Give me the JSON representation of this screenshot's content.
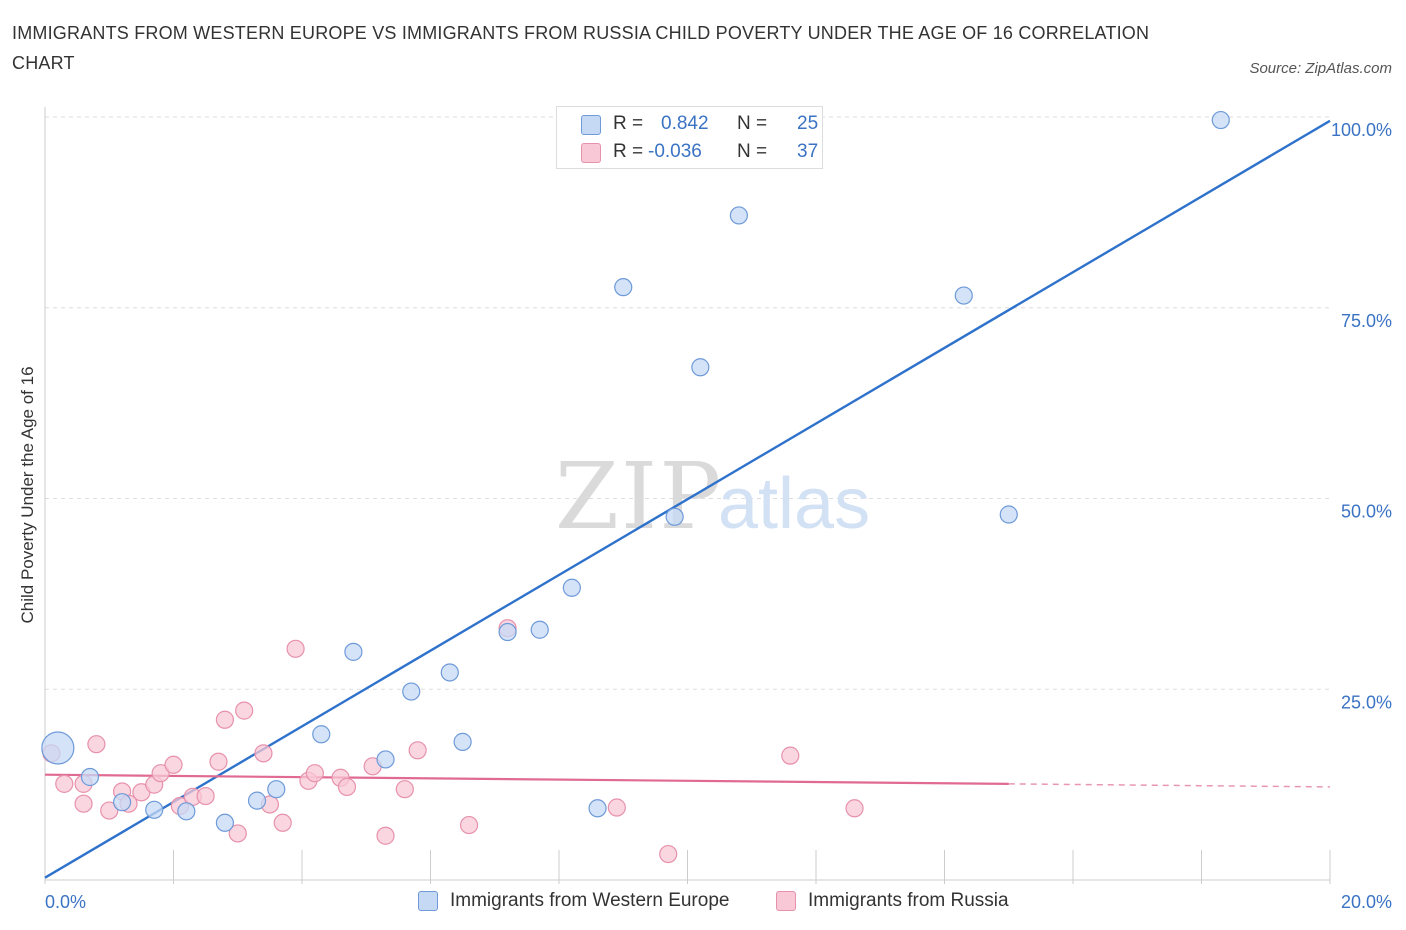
{
  "title": "IMMIGRANTS FROM WESTERN EUROPE VS IMMIGRANTS FROM RUSSIA CHILD POVERTY UNDER THE AGE OF 16 CORRELATION CHART",
  "source": "Source: ZipAtlas.com",
  "watermark": {
    "zip": "ZIP",
    "atlas": "atlas"
  },
  "colors": {
    "blue_fill": "#c5d9f5",
    "blue_stroke": "#6e9ad8",
    "blue_line": "#2f72cc",
    "pink_fill": "#f8c8d6",
    "pink_stroke": "#e791ac",
    "pink_line": "#e06a92",
    "grid": "#dddddd",
    "tick_label": "#3b73c4"
  },
  "legend": {
    "rows": [
      {
        "r_label": "R =",
        "r_value": "0.842",
        "n_label": "N =",
        "n_value": "25"
      },
      {
        "r_label": "R =",
        "r_value": "-0.036",
        "n_label": "N =",
        "n_value": "37"
      }
    ]
  },
  "chart_data": {
    "type": "scatter",
    "title": "IMMIGRANTS FROM WESTERN EUROPE VS IMMIGRANTS FROM RUSSIA CHILD POVERTY UNDER THE AGE OF 16 CORRELATION CHART",
    "xlabel": "",
    "ylabel": "Child Poverty Under the Age of 16",
    "xlim": [
      0,
      20
    ],
    "ylim": [
      0,
      100
    ],
    "x_tick_labels": [
      "0.0%",
      "20.0%"
    ],
    "y_ticks": [
      25,
      50,
      75,
      100
    ],
    "y_tick_labels": [
      "25.0%",
      "50.0%",
      "75.0%",
      "100.0%"
    ],
    "grid": true,
    "series": [
      {
        "name": "Immigrants from Western Europe",
        "color": "blue",
        "r": 0.842,
        "n": 25,
        "trend": {
          "x0": 0,
          "y0": 0.3,
          "x1": 20,
          "y1": 99.5,
          "dashed_from_x": null
        },
        "points": [
          {
            "x": 0.2,
            "y": 17.3,
            "big": true
          },
          {
            "x": 0.7,
            "y": 13.5
          },
          {
            "x": 1.2,
            "y": 10.2
          },
          {
            "x": 1.7,
            "y": 9.2
          },
          {
            "x": 2.2,
            "y": 9.0
          },
          {
            "x": 2.8,
            "y": 7.5
          },
          {
            "x": 3.3,
            "y": 10.4
          },
          {
            "x": 3.6,
            "y": 11.9
          },
          {
            "x": 4.3,
            "y": 19.1
          },
          {
            "x": 4.8,
            "y": 29.9
          },
          {
            "x": 5.3,
            "y": 15.8
          },
          {
            "x": 5.7,
            "y": 24.7
          },
          {
            "x": 6.3,
            "y": 27.2
          },
          {
            "x": 6.5,
            "y": 18.1
          },
          {
            "x": 7.2,
            "y": 32.5
          },
          {
            "x": 7.7,
            "y": 32.8
          },
          {
            "x": 8.2,
            "y": 38.3
          },
          {
            "x": 8.6,
            "y": 9.4
          },
          {
            "x": 9.0,
            "y": 77.7
          },
          {
            "x": 9.8,
            "y": 47.6
          },
          {
            "x": 10.2,
            "y": 67.2
          },
          {
            "x": 10.8,
            "y": 87.1
          },
          {
            "x": 14.3,
            "y": 76.6
          },
          {
            "x": 15.0,
            "y": 47.9
          },
          {
            "x": 18.3,
            "y": 99.6
          }
        ]
      },
      {
        "name": "Immigrants from Russia",
        "color": "pink",
        "r": -0.036,
        "n": 37,
        "trend": {
          "x0": 0,
          "y0": 13.8,
          "x1": 20,
          "y1": 12.2,
          "dashed_from_x": 15.0
        },
        "points": [
          {
            "x": 0.1,
            "y": 16.6
          },
          {
            "x": 0.3,
            "y": 12.6
          },
          {
            "x": 0.6,
            "y": 12.6
          },
          {
            "x": 0.6,
            "y": 10.0
          },
          {
            "x": 0.8,
            "y": 17.8
          },
          {
            "x": 1.0,
            "y": 9.1
          },
          {
            "x": 1.2,
            "y": 11.6
          },
          {
            "x": 1.3,
            "y": 10.0
          },
          {
            "x": 1.5,
            "y": 11.5
          },
          {
            "x": 1.7,
            "y": 12.5
          },
          {
            "x": 1.8,
            "y": 14.0
          },
          {
            "x": 2.0,
            "y": 15.1
          },
          {
            "x": 2.1,
            "y": 9.7
          },
          {
            "x": 2.3,
            "y": 10.9
          },
          {
            "x": 2.5,
            "y": 11.0
          },
          {
            "x": 2.7,
            "y": 15.5
          },
          {
            "x": 2.8,
            "y": 21.0
          },
          {
            "x": 3.0,
            "y": 6.1
          },
          {
            "x": 3.1,
            "y": 22.2
          },
          {
            "x": 3.4,
            "y": 16.6
          },
          {
            "x": 3.5,
            "y": 9.9
          },
          {
            "x": 3.7,
            "y": 7.5
          },
          {
            "x": 3.9,
            "y": 30.3
          },
          {
            "x": 4.1,
            "y": 13.0
          },
          {
            "x": 4.2,
            "y": 14.0
          },
          {
            "x": 4.6,
            "y": 13.4
          },
          {
            "x": 4.7,
            "y": 12.2
          },
          {
            "x": 5.1,
            "y": 14.9
          },
          {
            "x": 5.3,
            "y": 5.8
          },
          {
            "x": 5.6,
            "y": 11.9
          },
          {
            "x": 5.8,
            "y": 17.0
          },
          {
            "x": 6.6,
            "y": 7.2
          },
          {
            "x": 7.2,
            "y": 33.0
          },
          {
            "x": 8.9,
            "y": 9.5
          },
          {
            "x": 9.7,
            "y": 3.4
          },
          {
            "x": 11.6,
            "y": 16.3
          },
          {
            "x": 12.6,
            "y": 9.4
          }
        ]
      }
    ]
  }
}
